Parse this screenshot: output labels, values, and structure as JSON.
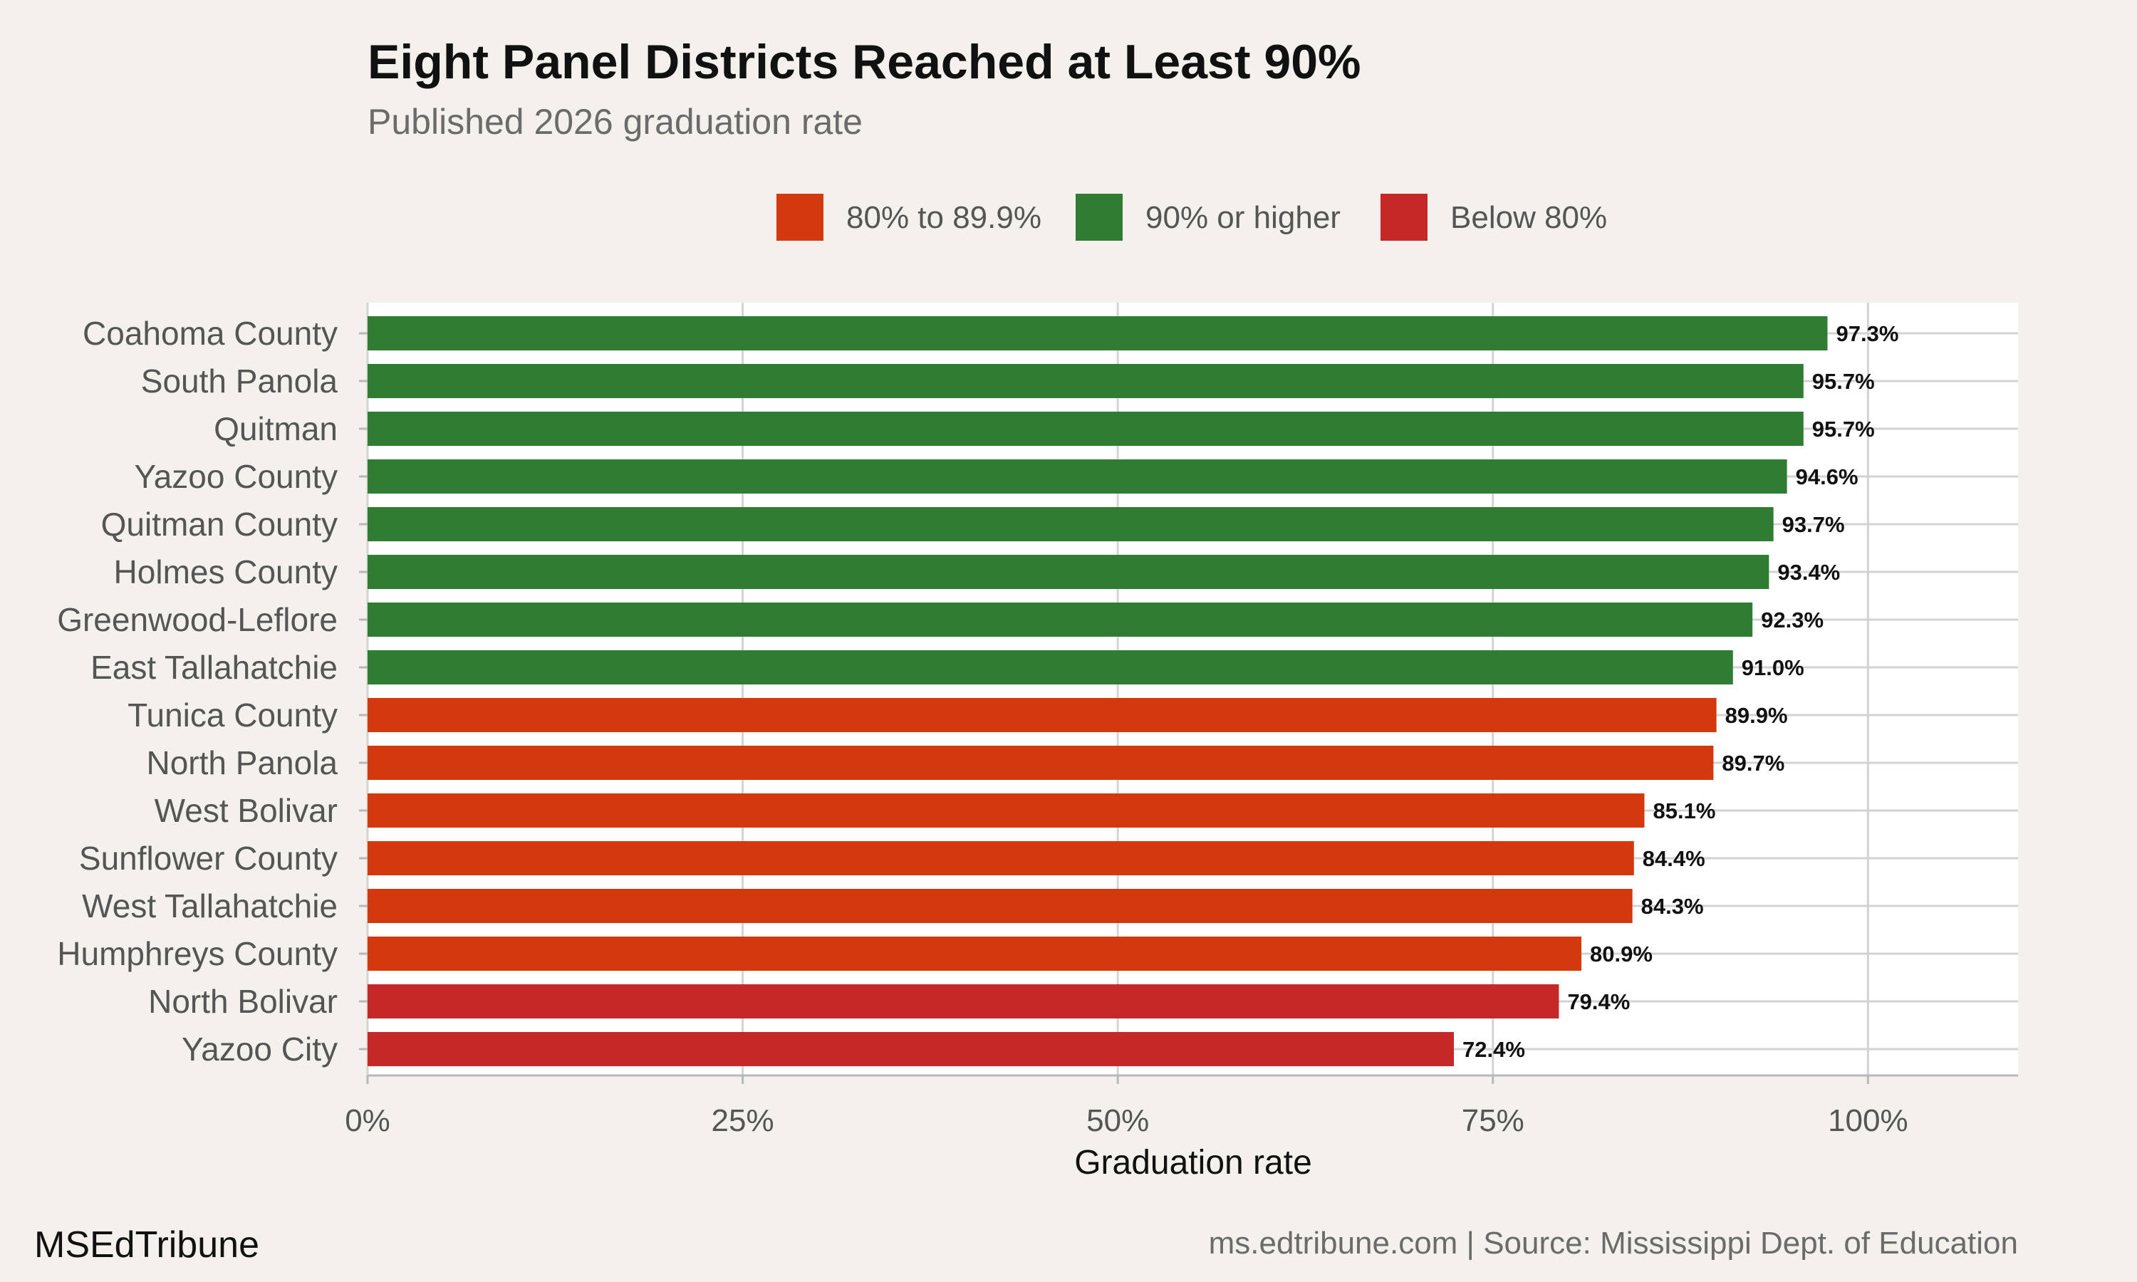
{
  "title": "Eight Panel Districts Reached at Least 90%",
  "subtitle": "Published 2026 graduation rate",
  "brand": "MSEdTribune",
  "source": "ms.edtribune.com | Source: Mississippi Dept. of Education",
  "colors": {
    "background": "#f4f1ec",
    "panel": "#ffffff",
    "gridline": "#d3d3d3",
    "80% to 89.9%": "#d4380d",
    "90% or higher": "#2e7d32",
    "Below 80%": "#c62828"
  },
  "chart_data": {
    "type": "bar",
    "orientation": "horizontal",
    "title": "Eight Panel Districts Reached at Least 90%",
    "subtitle": "Published 2026 graduation rate",
    "xlabel": "Graduation rate",
    "ylabel": "",
    "xlim": [
      0,
      110
    ],
    "x_ticks": [
      0,
      25,
      50,
      75,
      100
    ],
    "x_tick_labels": [
      "0%",
      "25%",
      "50%",
      "75%",
      "100%"
    ],
    "grid": true,
    "legend_position": "top",
    "legend": [
      "80% to 89.9%",
      "90% or higher",
      "Below 80%"
    ],
    "categories": [
      "Coahoma County",
      "South Panola",
      "Quitman",
      "Yazoo County",
      "Quitman County",
      "Holmes County",
      "Greenwood-Leflore",
      "East Tallahatchie",
      "Tunica County",
      "North Panola",
      "West Bolivar",
      "Sunflower County",
      "West Tallahatchie",
      "Humphreys County",
      "North Bolivar",
      "Yazoo City"
    ],
    "values": [
      97.3,
      95.7,
      95.7,
      94.6,
      93.7,
      93.4,
      92.3,
      91.0,
      89.9,
      89.7,
      85.1,
      84.4,
      84.3,
      80.9,
      79.4,
      72.4
    ],
    "value_labels": [
      "97.3%",
      "95.7%",
      "95.7%",
      "94.6%",
      "93.7%",
      "93.4%",
      "92.3%",
      "91.0%",
      "89.9%",
      "89.7%",
      "85.1%",
      "84.4%",
      "84.3%",
      "80.9%",
      "79.4%",
      "72.4%"
    ],
    "groups": [
      "90% or higher",
      "90% or higher",
      "90% or higher",
      "90% or higher",
      "90% or higher",
      "90% or higher",
      "90% or higher",
      "90% or higher",
      "80% to 89.9%",
      "80% to 89.9%",
      "80% to 89.9%",
      "80% to 89.9%",
      "80% to 89.9%",
      "80% to 89.9%",
      "Below 80%",
      "Below 80%"
    ]
  }
}
